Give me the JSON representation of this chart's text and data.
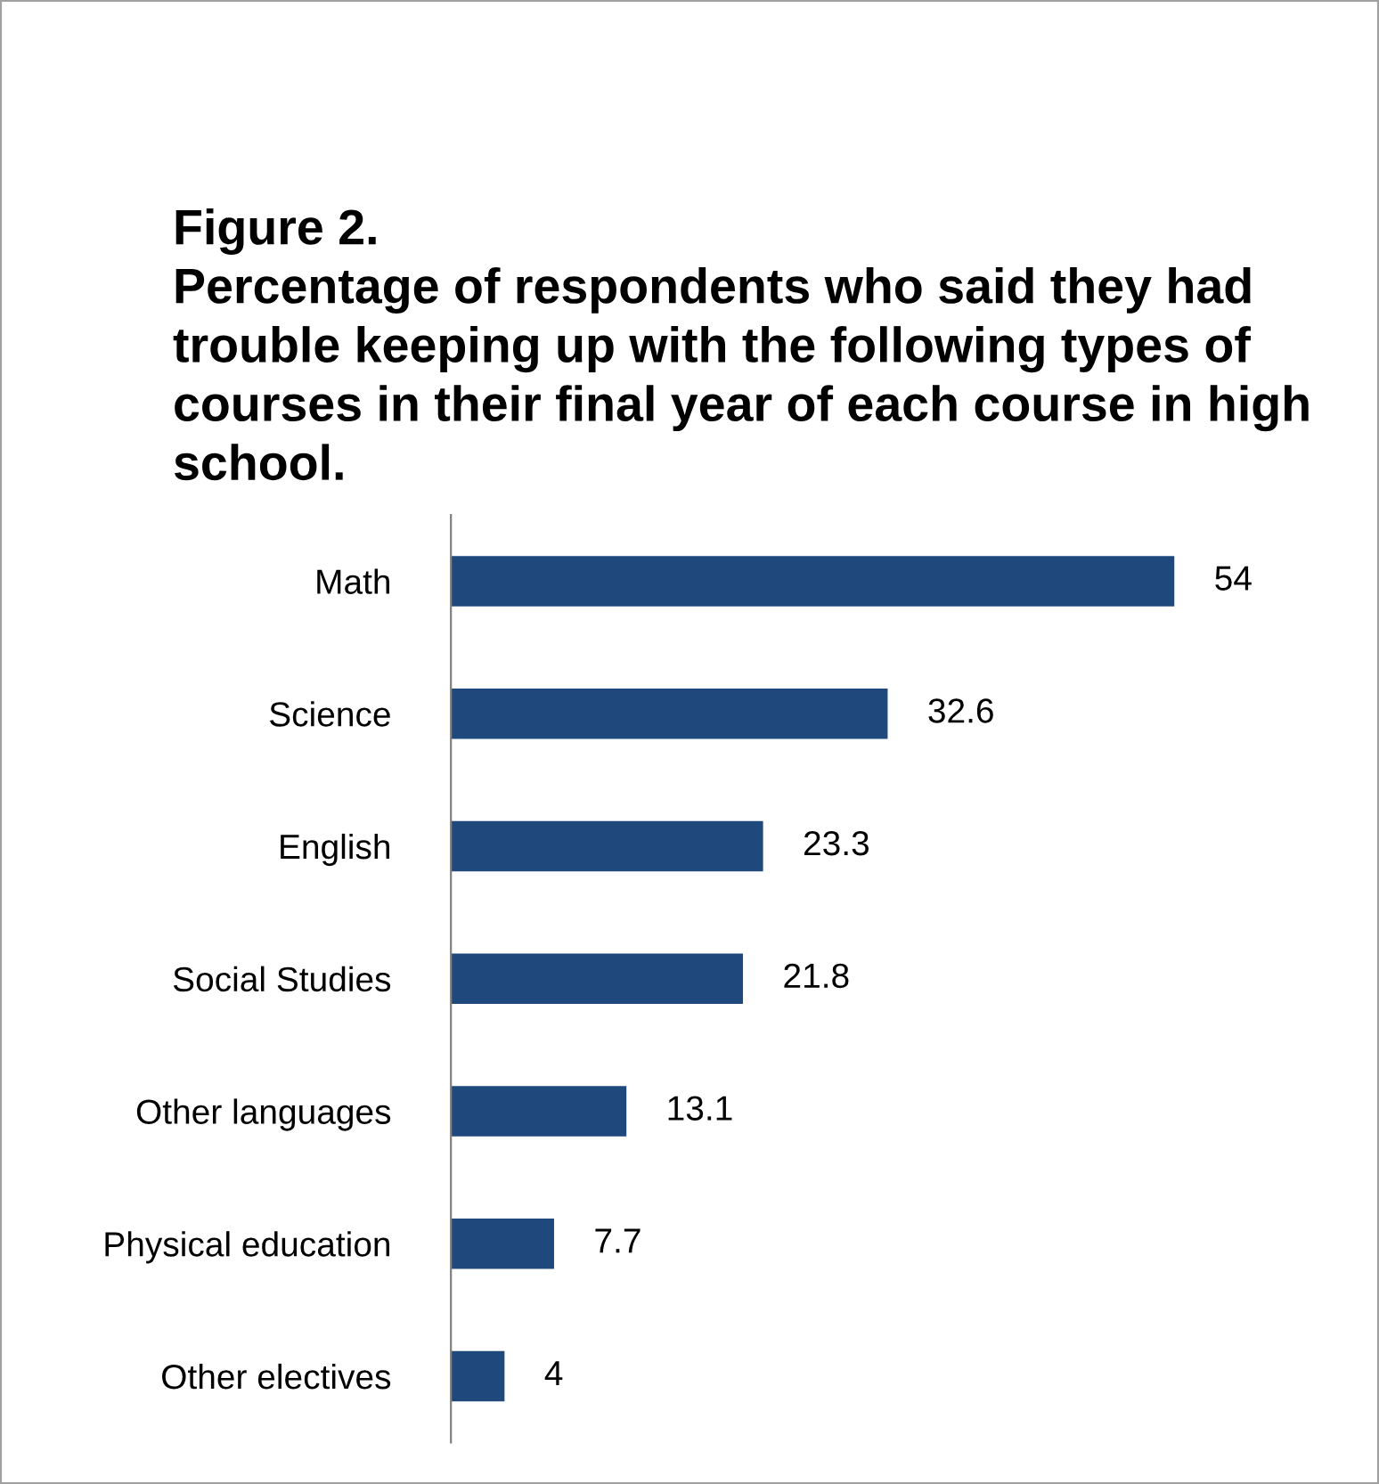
{
  "chart_data": {
    "type": "bar",
    "orientation": "horizontal",
    "title": "Figure 2.",
    "subtitle": "Percentage of respondents who said they had trouble keeping up with the following types of courses in their final year of each course in high school.",
    "categories": [
      "Math",
      "Science",
      "English",
      "Social Studies",
      "Other languages",
      "Physical education",
      "Other electives"
    ],
    "values": [
      54,
      32.6,
      23.3,
      21.8,
      13.1,
      7.7,
      4
    ],
    "color": "#1f497d",
    "data_labels": true,
    "grid": false,
    "legend": false
  }
}
